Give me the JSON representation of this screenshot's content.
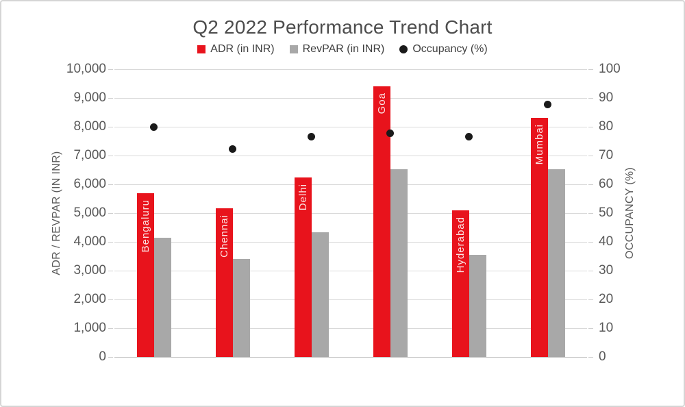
{
  "window": {
    "background": "#ffffff",
    "border_color": "#d5d5d5"
  },
  "chart_data": {
    "type": "combo (bar + scatter)",
    "title": "Q2 2022 Performance Trend Chart",
    "categories": [
      "Bengaluru",
      "Chennai",
      "Delhi",
      "Goa",
      "Hyderabad",
      "Mumbai"
    ],
    "series": [
      {
        "name": "ADR (in INR)",
        "type": "bar",
        "axis": "left",
        "marker": "square",
        "color": "#e8131c",
        "values": [
          5700,
          5175,
          6250,
          9400,
          5100,
          8300
        ]
      },
      {
        "name": "RevPAR (in INR)",
        "type": "bar",
        "axis": "left",
        "marker": "square",
        "color": "#a8a8a8",
        "values": [
          4150,
          3400,
          4325,
          6525,
          3550,
          6525
        ]
      },
      {
        "name": "Occupancy (%)",
        "type": "scatter",
        "axis": "right",
        "marker": "circle",
        "color": "#1a1a1a",
        "values": [
          72,
          65,
          69,
          70,
          69,
          79
        ]
      }
    ],
    "ylabel_left": "ADR / REVPAR (IN INR)",
    "ylabel_right": "OCCUPANCY (%)",
    "ylim_left": [
      0,
      10000
    ],
    "ytick_step_left": 1000,
    "ylim_right": [
      0,
      90
    ],
    "ytick_step_right": 10,
    "grid": true,
    "legend_position": "top",
    "category_labels_placement": "vertical inside ADR bars, reading bottom-to-top",
    "colors": {
      "grid": "#d9d9d9",
      "axis_text": "#595959",
      "title_text": "#4d4d4d",
      "legend_text": "#3f3f3f",
      "bar_label_text": "#fbe3e3"
    }
  }
}
